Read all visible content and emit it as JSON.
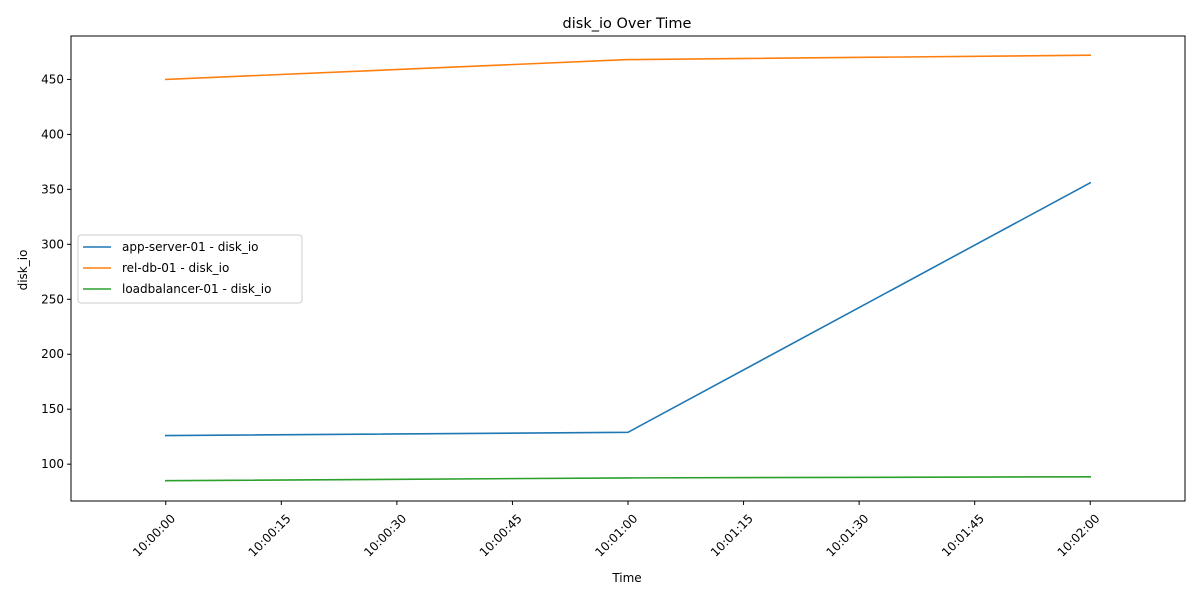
{
  "chart_data": {
    "type": "line",
    "title": "disk_io Over Time",
    "xlabel": "Time",
    "ylabel": "disk_io",
    "x": [
      "10:00:00",
      "10:01:00",
      "10:02:00"
    ],
    "x_ticks": [
      "10:00:00",
      "10:00:15",
      "10:00:30",
      "10:00:45",
      "10:01:00",
      "10:01:15",
      "10:01:30",
      "10:01:45",
      "10:02:00"
    ],
    "x_range_seconds": [
      -12.3,
      132.3
    ],
    "y_ticks": [
      100,
      150,
      200,
      250,
      300,
      350,
      400,
      450
    ],
    "ylim": [
      66.5,
      489.5
    ],
    "grid": false,
    "legend_position": "center-left",
    "series": [
      {
        "name": "app-server-01 - disk_io",
        "color": "#1f77b4",
        "values": [
          126,
          129,
          356
        ]
      },
      {
        "name": "rel-db-01 - disk_io",
        "color": "#ff7f0e",
        "values": [
          450,
          468,
          472
        ]
      },
      {
        "name": "loadbalancer-01 - disk_io",
        "color": "#2ca02c",
        "values": [
          85,
          87.5,
          88.5
        ]
      }
    ]
  }
}
